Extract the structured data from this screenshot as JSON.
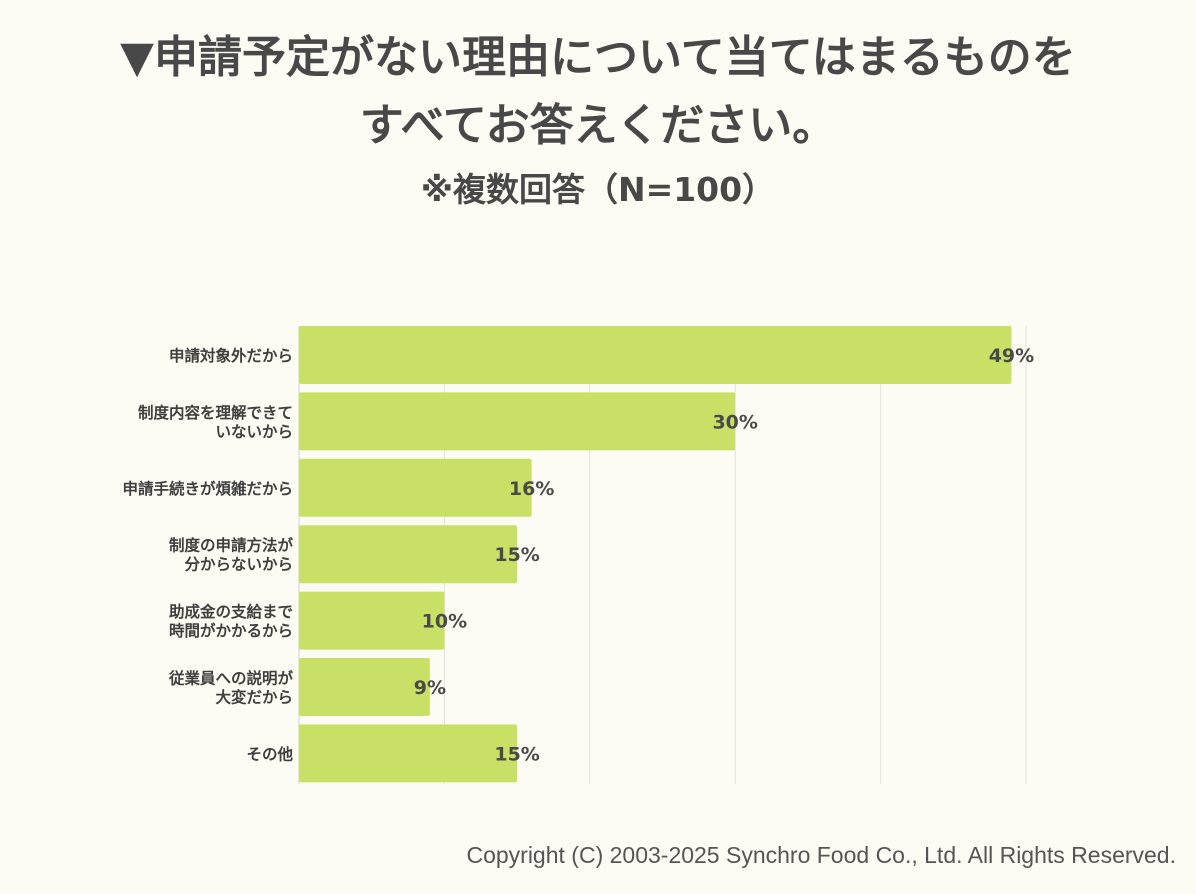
{
  "title_line1": "▼申請予定がない理由について当てはまるものを",
  "title_line2": "すべてお答えください。",
  "subtitle": "※複数回答（N=100）",
  "copyright": "Copyright (C) 2003-2025  Synchro Food Co., Ltd. All Rights Reserved.",
  "colors": {
    "bar": "#c9e066",
    "grid": "#e6e6e0",
    "background": "#fdfcf4",
    "text": "#444444"
  },
  "chart_data": {
    "type": "bar",
    "orientation": "horizontal",
    "title": "▼申請予定がない理由について当てはまるものをすべてお答えください。",
    "subtitle": "※複数回答（N=100）",
    "categories": [
      [
        "申請対象外だから"
      ],
      [
        "制度内容を理解できて",
        "いないから"
      ],
      [
        "申請手続きが煩雑だから"
      ],
      [
        "制度の申請方法が",
        "分からないから"
      ],
      [
        "助成金の支給まで",
        "時間がかかるから"
      ],
      [
        "従業員への説明が",
        "大変だから"
      ],
      [
        "その他"
      ]
    ],
    "values": [
      49,
      30,
      16,
      15,
      10,
      9,
      15
    ],
    "value_labels": [
      "49%",
      "30%",
      "16%",
      "15%",
      "10%",
      "9%",
      "15%"
    ],
    "unit": "%",
    "xlim": [
      0,
      50
    ],
    "gridlines": [
      0,
      10,
      20,
      30,
      40,
      50
    ],
    "grid": true,
    "legend": false
  }
}
